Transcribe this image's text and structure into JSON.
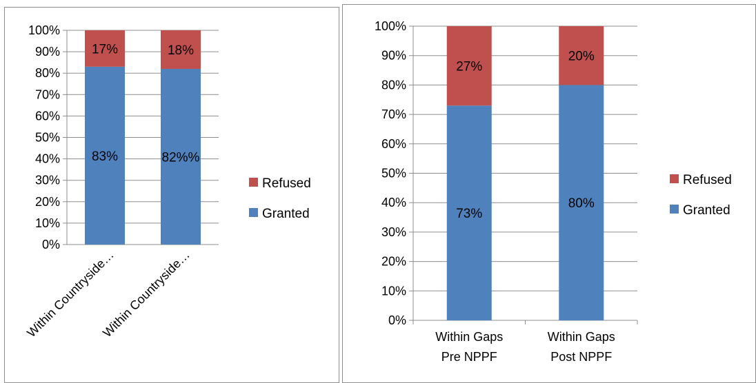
{
  "chart_data": [
    {
      "type": "bar",
      "stacked": true,
      "categories": [
        "Within Countryside…",
        "Within Countryside…"
      ],
      "series": [
        {
          "name": "Granted",
          "values": [
            83,
            82
          ],
          "labels": [
            "83%",
            "82%%"
          ],
          "color": "#4f81bd"
        },
        {
          "name": "Refused",
          "values": [
            17,
            18
          ],
          "labels": [
            "17%",
            "18%"
          ],
          "color": "#c0504d"
        }
      ],
      "y_ticks": [
        "0%",
        "10%",
        "20%",
        "30%",
        "40%",
        "50%",
        "60%",
        "70%",
        "80%",
        "90%",
        "100%"
      ],
      "ylim": [
        0,
        100
      ],
      "grid": true,
      "legend": "right",
      "legend_entries": [
        "Refused",
        "Granted"
      ]
    },
    {
      "type": "bar",
      "stacked": true,
      "categories": [
        [
          "Within Gaps",
          "Pre NPPF"
        ],
        [
          "Within Gaps",
          "Post NPPF"
        ]
      ],
      "series": [
        {
          "name": "Granted",
          "values": [
            73,
            80
          ],
          "labels": [
            "73%",
            "80%"
          ],
          "color": "#4f81bd"
        },
        {
          "name": "Refused",
          "values": [
            27,
            20
          ],
          "labels": [
            "27%",
            "20%"
          ],
          "color": "#c0504d"
        }
      ],
      "y_ticks": [
        "0%",
        "10%",
        "20%",
        "30%",
        "40%",
        "50%",
        "60%",
        "70%",
        "80%",
        "90%",
        "100%"
      ],
      "ylim": [
        0,
        100
      ],
      "grid": true,
      "legend": "right",
      "legend_entries": [
        "Refused",
        "Granted"
      ]
    }
  ]
}
